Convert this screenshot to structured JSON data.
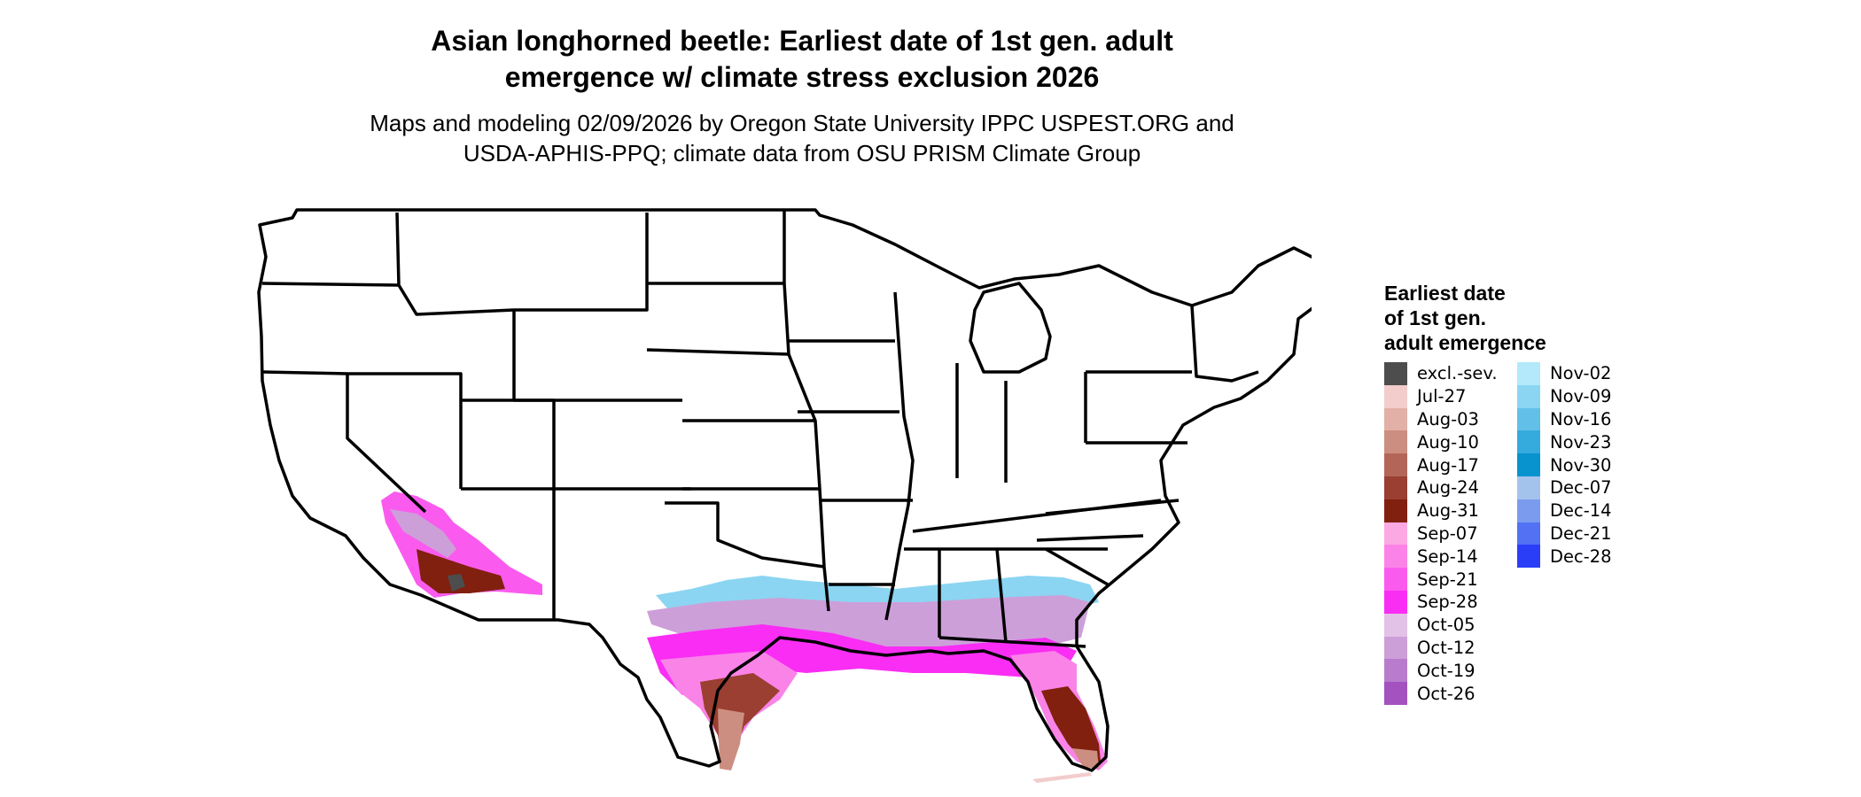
{
  "header": {
    "title_line1": "Asian longhorned beetle: Earliest date of 1st gen. adult",
    "title_line2": "emergence w/ climate stress exclusion 2026",
    "subtitle_line1": "Maps and modeling 02/09/2026 by Oregon State University IPPC USPEST.ORG and",
    "subtitle_line2": "USDA-APHIS-PPQ; climate data from OSU PRISM Climate Group"
  },
  "legend": {
    "title_line1": "Earliest date",
    "title_line2": "of 1st gen.",
    "title_line3": "adult emergence",
    "items": [
      {
        "label": "excl.-sev.",
        "color": "#4d4d4d"
      },
      {
        "label": "Jul-27",
        "color": "#f3cccc"
      },
      {
        "label": "Aug-03",
        "color": "#e2b0a6"
      },
      {
        "label": "Aug-10",
        "color": "#cc8e80"
      },
      {
        "label": "Aug-17",
        "color": "#b36658"
      },
      {
        "label": "Aug-24",
        "color": "#9a3f31"
      },
      {
        "label": "Aug-31",
        "color": "#81200f"
      },
      {
        "label": "Sep-07",
        "color": "#fca8e2"
      },
      {
        "label": "Sep-14",
        "color": "#fb83e8"
      },
      {
        "label": "Sep-21",
        "color": "#fa5bee"
      },
      {
        "label": "Sep-28",
        "color": "#fa2df4"
      },
      {
        "label": "Oct-05",
        "color": "#e2c2e6"
      },
      {
        "label": "Oct-12",
        "color": "#cd9fd9"
      },
      {
        "label": "Oct-19",
        "color": "#b87ccc"
      },
      {
        "label": "Oct-26",
        "color": "#a352c0"
      },
      {
        "label": "Nov-02",
        "color": "#b3e9fb"
      },
      {
        "label": "Nov-09",
        "color": "#8bd5f2"
      },
      {
        "label": "Nov-16",
        "color": "#62c0e8"
      },
      {
        "label": "Nov-23",
        "color": "#35aadd"
      },
      {
        "label": "Nov-30",
        "color": "#0893cf"
      },
      {
        "label": "Dec-07",
        "color": "#a4c3ec"
      },
      {
        "label": "Dec-14",
        "color": "#7b9bef"
      },
      {
        "label": "Dec-21",
        "color": "#5271f3"
      },
      {
        "label": "Dec-28",
        "color": "#2a3ef8"
      }
    ]
  }
}
